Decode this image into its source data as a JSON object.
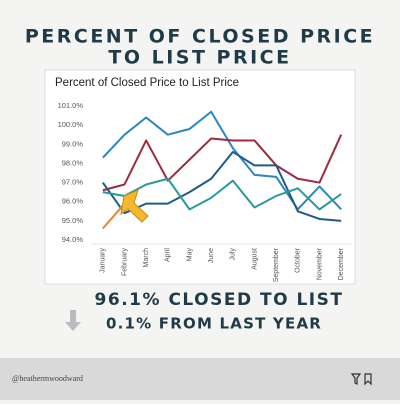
{
  "header": {
    "title_lines": [
      "PERCENT OF CLOSED PRICE",
      "TO LIST PRICE"
    ]
  },
  "chart_data": {
    "type": "line",
    "title": "Percent of Closed Price to List Price",
    "categories": [
      "January",
      "February",
      "March",
      "April",
      "May",
      "June",
      "July",
      "August",
      "September",
      "October",
      "November",
      "December"
    ],
    "series": [
      {
        "color": "#2b86bf",
        "values": [
          98.3,
          99.5,
          100.4,
          99.5,
          99.8,
          100.7,
          98.8,
          97.4,
          97.3,
          95.6,
          96.8,
          95.6
        ]
      },
      {
        "color": "#9e2a3f",
        "values": [
          96.6,
          96.9,
          99.2,
          97.1,
          98.2,
          99.3,
          99.2,
          99.2,
          97.9,
          97.2,
          97.0,
          99.5
        ]
      },
      {
        "color": "#1f5b86",
        "values": [
          97.0,
          95.4,
          95.9,
          95.9,
          96.5,
          97.2,
          98.6,
          97.9,
          97.9,
          95.5,
          95.1,
          95.0
        ]
      },
      {
        "color": "#2a9a9a",
        "values": [
          96.5,
          96.3,
          96.9,
          97.2,
          95.6,
          96.2,
          97.1,
          95.7,
          96.3,
          96.7,
          95.6,
          96.4
        ]
      },
      {
        "color": "#e8822a",
        "values": [
          94.6,
          95.9,
          null,
          null,
          null,
          null,
          null,
          null,
          null,
          null,
          null,
          null
        ]
      }
    ],
    "ylim": [
      94,
      101
    ],
    "yticks": [
      {
        "value": 94,
        "label": "94.0%"
      },
      {
        "value": 95,
        "label": "95.0%"
      },
      {
        "value": 96,
        "label": "96.0%"
      },
      {
        "value": 97,
        "label": "97.0%"
      },
      {
        "value": 98,
        "label": "98.0%"
      },
      {
        "value": 99,
        "label": "99.0%"
      },
      {
        "value": 100,
        "label": "100.0%"
      },
      {
        "value": 101,
        "label": "101.0%"
      }
    ],
    "grid": false
  },
  "stats": {
    "headline": "96.1% CLOSED TO LIST",
    "change": "0.1% FROM LAST YEAR"
  },
  "footer": {
    "handle": "@heathermwoodward"
  }
}
